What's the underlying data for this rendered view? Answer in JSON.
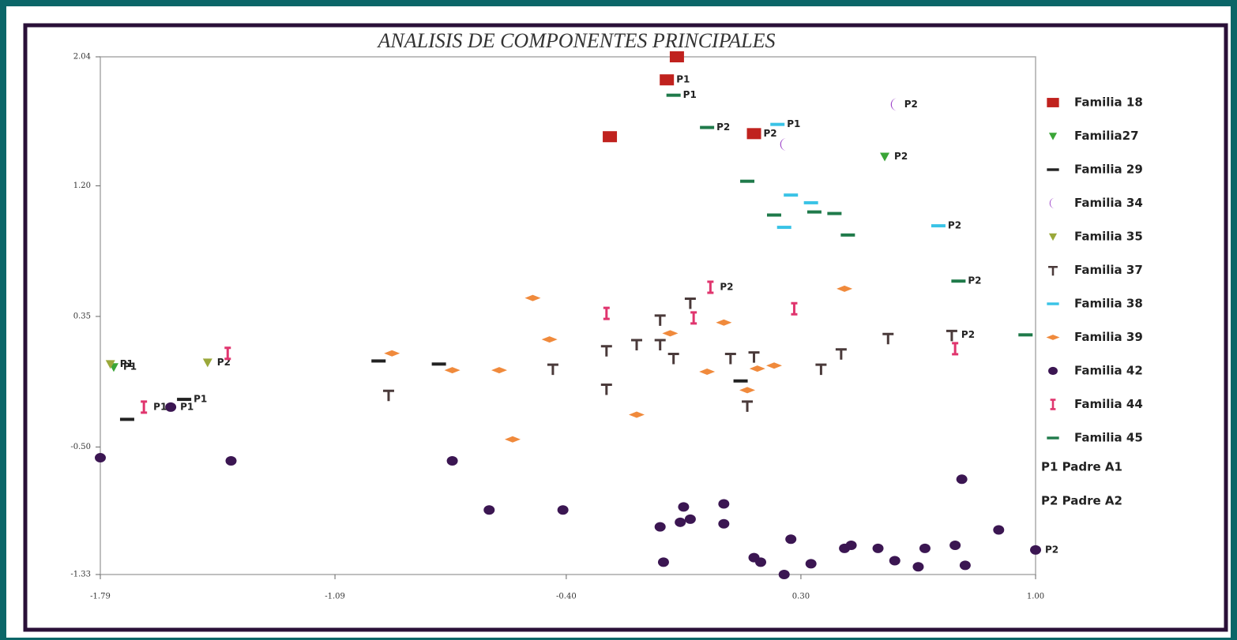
{
  "chart_data": {
    "type": "scatter",
    "title": "ANALISIS DE COMPONENTES PRINCIPALES",
    "xlim": [
      -1.79,
      1.0
    ],
    "ylim": [
      -1.33,
      2.04
    ],
    "xticks": [
      -1.79,
      -1.09,
      {
        "value": -0.4,
        "label": "-0.40"
      },
      {
        "value": 0.3,
        "label": "0.30"
      },
      {
        "value": 1.0,
        "label": "1.00"
      }
    ],
    "yticks": [
      2.04,
      {
        "value": 1.2,
        "label": "1.20"
      },
      0.35,
      {
        "value": -0.5,
        "label": "-0.50"
      },
      -1.33
    ],
    "legend_notes": [
      "P1  Padre A1",
      "P2  Padre A2"
    ],
    "series": [
      {
        "name": "Familia 18",
        "color": "#c0221e",
        "marker": "square",
        "x": [
          -0.07,
          -0.1,
          -0.27,
          0.16
        ],
        "y": [
          2.04,
          1.89,
          1.52,
          1.54
        ],
        "point_labels": [
          null,
          "P1",
          null,
          "P2"
        ]
      },
      {
        "name": "Familia27",
        "color": "#3aa537",
        "marker": "triangle",
        "x": [
          -1.75,
          0.55
        ],
        "y": [
          0.02,
          1.39
        ],
        "point_labels": [
          "P1",
          "P2"
        ]
      },
      {
        "name": "Familia 29",
        "color": "#222222",
        "marker": "dash",
        "x": [
          -0.78,
          -1.54,
          -1.71,
          0.12,
          -0.96
        ],
        "y": [
          0.04,
          -0.19,
          -0.32,
          -0.07,
          0.06
        ],
        "point_labels": [
          null,
          "P1",
          null,
          null,
          null
        ]
      },
      {
        "name": "Familia 34",
        "color": "#9b3fc8",
        "marker": "crescent",
        "x": [
          0.58,
          0.25
        ],
        "y": [
          1.73,
          1.47
        ],
        "point_labels": [
          "P2",
          null
        ]
      },
      {
        "name": "Familia 35",
        "color": "#9aa83a",
        "marker": "triangle",
        "x": [
          -1.47,
          -1.76
        ],
        "y": [
          0.05,
          0.04
        ],
        "point_labels": [
          "P2",
          "P1"
        ]
      },
      {
        "name": "Familia 37",
        "color": "#4a3a3a",
        "marker": "cross",
        "x": [
          -0.12,
          -0.28,
          -0.19,
          -0.12,
          -0.08,
          -0.44,
          -0.93,
          -0.28,
          0.09,
          0.16,
          0.36,
          0.42,
          0.56,
          0.75,
          -0.03,
          0.14
        ],
        "y": [
          0.33,
          0.13,
          0.17,
          0.17,
          0.08,
          0.01,
          -0.16,
          -0.12,
          0.08,
          0.09,
          0.01,
          0.11,
          0.21,
          0.23,
          0.44,
          -0.23
        ],
        "point_labels": [
          null,
          null,
          null,
          null,
          null,
          null,
          null,
          null,
          null,
          null,
          null,
          null,
          null,
          "P2",
          null,
          null
        ]
      },
      {
        "name": "Familia 38",
        "color": "#39c3e6",
        "marker": "dash",
        "x": [
          0.23,
          0.27,
          0.33,
          0.25,
          0.71
        ],
        "y": [
          1.6,
          1.14,
          1.09,
          0.93,
          0.94
        ],
        "point_labels": [
          "P1",
          null,
          null,
          null,
          "P2"
        ]
      },
      {
        "name": "Familia 39",
        "color": "#f08a3c",
        "marker": "diamond",
        "x": [
          -0.92,
          -0.74,
          -0.6,
          -0.45,
          -0.56,
          -0.19,
          -0.09,
          0.07,
          0.02,
          0.14,
          0.17,
          0.22,
          0.43,
          -0.5
        ],
        "y": [
          0.11,
          0.0,
          0.0,
          0.2,
          -0.45,
          -0.29,
          0.24,
          0.31,
          -0.01,
          -0.13,
          0.01,
          0.03,
          0.53,
          0.47
        ],
        "point_labels": [
          null,
          null,
          null,
          null,
          null,
          null,
          null,
          null,
          null,
          null,
          null,
          null,
          null,
          null
        ]
      },
      {
        "name": "Familia 42",
        "color": "#3b1652",
        "marker": "circle",
        "x": [
          -1.79,
          -1.4,
          -1.58,
          -0.74,
          -0.63,
          -0.41,
          -0.12,
          -0.05,
          -0.06,
          -0.03,
          0.07,
          0.07,
          -0.11,
          0.16,
          0.18,
          0.25,
          0.27,
          0.33,
          0.43,
          0.45,
          0.53,
          0.58,
          0.65,
          0.67,
          0.76,
          0.79,
          0.78,
          0.89,
          1.0
        ],
        "y": [
          -0.57,
          -0.59,
          -0.24,
          -0.59,
          -0.91,
          -0.91,
          -1.02,
          -0.89,
          -0.99,
          -0.97,
          -0.87,
          -1.0,
          -1.25,
          -1.22,
          -1.25,
          -1.33,
          -1.1,
          -1.26,
          -1.16,
          -1.14,
          -1.16,
          -1.24,
          -1.28,
          -1.16,
          -1.14,
          -1.27,
          -0.71,
          -1.04,
          -1.17
        ],
        "point_labels": [
          null,
          null,
          "P1",
          null,
          null,
          null,
          null,
          null,
          null,
          null,
          null,
          null,
          null,
          null,
          null,
          null,
          null,
          null,
          null,
          null,
          null,
          null,
          null,
          null,
          null,
          null,
          null,
          null,
          "P2"
        ]
      },
      {
        "name": "Familia 44",
        "color": "#e0356e",
        "marker": "ibeam",
        "x": [
          -1.41,
          -1.66,
          -0.28,
          -0.02,
          0.03,
          0.28,
          0.76
        ],
        "y": [
          0.11,
          -0.24,
          0.37,
          0.34,
          0.54,
          0.4,
          0.14
        ],
        "point_labels": [
          null,
          "P1",
          null,
          null,
          "P2",
          null,
          null
        ]
      },
      {
        "name": "Familia 45",
        "color": "#1f7a4a",
        "marker": "dash",
        "x": [
          -0.08,
          0.02,
          0.14,
          0.22,
          0.34,
          0.4,
          0.44,
          0.77,
          0.97
        ],
        "y": [
          1.79,
          1.58,
          1.23,
          1.01,
          1.03,
          1.02,
          0.88,
          0.58,
          0.23
        ],
        "point_labels": [
          "P1",
          "P2",
          null,
          null,
          null,
          null,
          null,
          "P2",
          null
        ]
      }
    ]
  }
}
